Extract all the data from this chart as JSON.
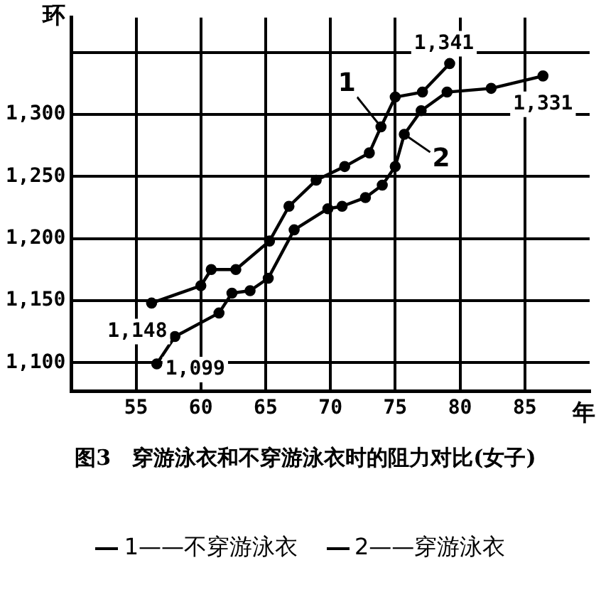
{
  "chart_data": {
    "type": "line",
    "title": "图3　穿游泳衣和不穿游泳衣时的阻力对比(女子)",
    "xlabel": "年",
    "ylabel": "环",
    "xlim": [
      50,
      90
    ],
    "ylim": [
      1077,
      1378
    ],
    "xticks": [
      55,
      60,
      65,
      70,
      75,
      80,
      85
    ],
    "yticks": [
      {
        "value": 1100,
        "label": "1,100"
      },
      {
        "value": 1150,
        "label": "1,150"
      },
      {
        "value": 1200,
        "label": "1,200"
      },
      {
        "value": 1250,
        "label": "1,250"
      },
      {
        "value": 1300,
        "label": "1,300"
      },
      {
        "value": 1350,
        "label": null
      }
    ],
    "grid": true,
    "legend": "bottom",
    "marker": "circle",
    "line_style": "solid",
    "series": [
      {
        "name": "1——不穿游泳衣",
        "color": "#000000",
        "x": [
          56.2,
          60,
          60.8,
          62.7,
          65.3,
          66.8,
          68.9,
          71.1,
          73,
          73.9,
          75,
          77.1,
          79.2
        ],
        "values": [
          1148,
          1162,
          1175,
          1175,
          1198,
          1226,
          1247,
          1258,
          1269,
          1290,
          1314,
          1318,
          1341
        ],
        "value_labels": [
          "1,148",
          null,
          null,
          null,
          null,
          null,
          null,
          null,
          null,
          null,
          null,
          null,
          "1,341"
        ]
      },
      {
        "name": "2——穿游泳衣",
        "color": "#000000",
        "x": [
          56.6,
          58,
          61.4,
          62.4,
          63.8,
          65.2,
          67.2,
          69.8,
          70.9,
          72.7,
          74,
          75,
          75.7,
          77,
          79,
          82.4,
          86.4
        ],
        "values": [
          1099,
          1121,
          1140,
          1156,
          1158,
          1168,
          1207,
          1224,
          1226,
          1233,
          1243,
          1258,
          1284,
          1303,
          1318,
          1321,
          1331
        ],
        "value_labels": [
          "1,099",
          null,
          null,
          null,
          null,
          null,
          null,
          null,
          null,
          null,
          null,
          null,
          null,
          null,
          null,
          null,
          "1,331"
        ]
      }
    ],
    "annotations": [
      {
        "text": "1",
        "x": 73.9,
        "y": 1290
      },
      {
        "text": "2",
        "x": 75.7,
        "y": 1284
      }
    ]
  }
}
